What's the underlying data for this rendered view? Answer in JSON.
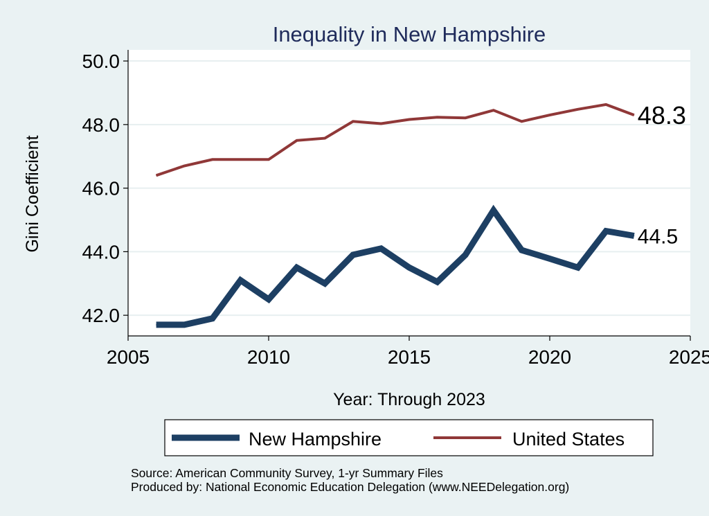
{
  "chart_data": {
    "type": "line",
    "title": "Inequality in New Hampshire",
    "xlabel": "Year: Through 2023",
    "ylabel": "Gini Coefficient",
    "xlim": [
      2005,
      2025
    ],
    "ylim": [
      41.35,
      50.35
    ],
    "x_ticks": [
      2005,
      2010,
      2015,
      2020,
      2025
    ],
    "y_ticks": [
      42.0,
      44.0,
      46.0,
      48.0,
      50.0
    ],
    "y_tick_labels": [
      "42.0",
      "44.0",
      "46.0",
      "48.0",
      "50.0"
    ],
    "x": [
      2006,
      2007,
      2008,
      2009,
      2010,
      2011,
      2012,
      2013,
      2014,
      2015,
      2016,
      2017,
      2018,
      2019,
      2020,
      2021,
      2022,
      2023
    ],
    "series": [
      {
        "name": "New Hampshire",
        "color": "#1d3f63",
        "values": [
          41.7,
          41.7,
          41.9,
          43.1,
          42.5,
          43.5,
          43.0,
          43.9,
          44.1,
          43.5,
          43.05,
          43.9,
          45.3,
          44.05,
          43.78,
          43.5,
          44.65,
          44.5
        ],
        "end_label": "44.5"
      },
      {
        "name": "United States",
        "color": "#903838",
        "values": [
          46.4,
          46.7,
          46.9,
          46.9,
          46.9,
          47.5,
          47.57,
          48.1,
          48.03,
          48.16,
          48.23,
          48.21,
          48.45,
          48.1,
          48.3,
          48.48,
          48.63,
          48.3
        ],
        "end_label": "48.3"
      }
    ],
    "grid": true,
    "legend_position": "bottom",
    "source_lines": [
      "Source: American Community Survey, 1-yr Summary Files",
      "Produced by: National Economic Education Delegation (www.NEEDelegation.org)"
    ]
  },
  "colors": {
    "background": "#eaf2f3",
    "plot_background": "#ffffff",
    "grid": "#e7eff0",
    "title": "#1f2b5b"
  }
}
